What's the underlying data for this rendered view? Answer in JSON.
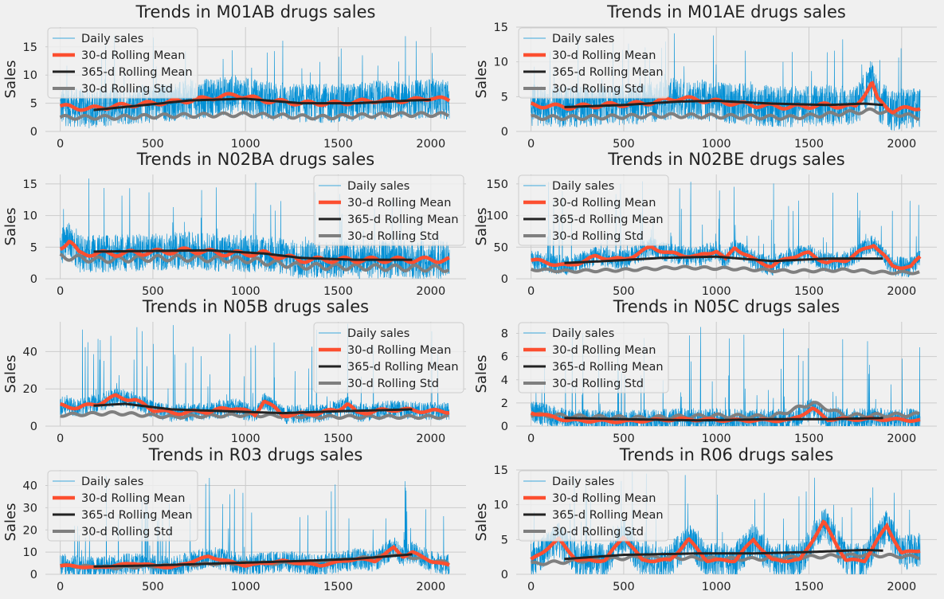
{
  "chart_data": [
    {
      "type": "line",
      "title": "Trends in M01AB drugs sales",
      "ylabel": "Sales",
      "xlim": [
        -80,
        2190
      ],
      "ylim": [
        0,
        18.5
      ],
      "xticks": [
        0,
        500,
        1000,
        1500,
        2000
      ],
      "yticks": [
        0,
        5,
        10,
        15
      ],
      "grid": true,
      "legend_position": "top-left",
      "series_stats": {
        "daily_mean": 5.0,
        "daily_spread": 3.5,
        "daily_peak": 17.5,
        "rolling_mean": [
          [
            0,
            4.5
          ],
          [
            150,
            4.0
          ],
          [
            300,
            4.5
          ],
          [
            500,
            5.0
          ],
          [
            700,
            5.5
          ],
          [
            950,
            6.5
          ],
          [
            1100,
            5.5
          ],
          [
            1300,
            5.0
          ],
          [
            1500,
            5.0
          ],
          [
            1700,
            5.5
          ],
          [
            1900,
            5.5
          ],
          [
            2000,
            6.0
          ],
          [
            2100,
            5.5
          ]
        ],
        "trend": [
          [
            180,
            3.8
          ],
          [
            400,
            4.5
          ],
          [
            700,
            5.5
          ],
          [
            1000,
            5.8
          ],
          [
            1300,
            5.0
          ],
          [
            1600,
            5.0
          ],
          [
            1900,
            5.5
          ],
          [
            2000,
            5.6
          ]
        ],
        "rolling_std": [
          [
            0,
            2.5
          ],
          [
            300,
            2.5
          ],
          [
            600,
            2.8
          ],
          [
            1000,
            3.0
          ],
          [
            1400,
            2.5
          ],
          [
            1800,
            3.0
          ],
          [
            2100,
            3.0
          ]
        ]
      }
    },
    {
      "type": "line",
      "title": "Trends in M01AE drugs sales",
      "ylabel": "Sales",
      "xlim": [
        -80,
        2190
      ],
      "ylim": [
        0,
        15
      ],
      "xticks": [
        0,
        500,
        1000,
        1500,
        2000
      ],
      "yticks": [
        0,
        5,
        10,
        15
      ],
      "grid": true,
      "legend_position": "top-left",
      "series_stats": {
        "daily_mean": 3.8,
        "daily_spread": 3.0,
        "daily_peak": 14.5,
        "rolling_mean": [
          [
            0,
            3.8
          ],
          [
            200,
            3.5
          ],
          [
            400,
            3.8
          ],
          [
            600,
            4.0
          ],
          [
            800,
            4.8
          ],
          [
            1000,
            4.3
          ],
          [
            1200,
            3.8
          ],
          [
            1400,
            3.5
          ],
          [
            1600,
            3.8
          ],
          [
            1750,
            3.5
          ],
          [
            1840,
            7.0
          ],
          [
            1870,
            4.5
          ],
          [
            1950,
            3.0
          ],
          [
            2100,
            3.5
          ]
        ],
        "trend": [
          [
            180,
            3.5
          ],
          [
            500,
            3.8
          ],
          [
            800,
            4.3
          ],
          [
            1000,
            4.4
          ],
          [
            1300,
            4.0
          ],
          [
            1600,
            3.8
          ],
          [
            1800,
            4.0
          ],
          [
            1900,
            3.8
          ]
        ],
        "rolling_std": [
          [
            0,
            2.0
          ],
          [
            300,
            2.0
          ],
          [
            700,
            2.3
          ],
          [
            1000,
            2.2
          ],
          [
            1400,
            2.0
          ],
          [
            1850,
            3.0
          ],
          [
            2100,
            2.0
          ]
        ]
      }
    },
    {
      "type": "line",
      "title": "Trends in N02BA drugs sales",
      "ylabel": "Sales",
      "xlim": [
        -80,
        2190
      ],
      "ylim": [
        0,
        16.5
      ],
      "xticks": [
        0,
        500,
        1000,
        1500,
        2000
      ],
      "yticks": [
        0,
        5,
        10,
        15
      ],
      "grid": true,
      "legend_position": "top-right",
      "series_stats": {
        "daily_mean": 3.8,
        "daily_spread": 3.0,
        "daily_peak": 16.0,
        "rolling_mean": [
          [
            0,
            5.0
          ],
          [
            50,
            6.0
          ],
          [
            100,
            4.0
          ],
          [
            300,
            4.0
          ],
          [
            500,
            4.2
          ],
          [
            700,
            4.5
          ],
          [
            900,
            4.0
          ],
          [
            1100,
            4.0
          ],
          [
            1300,
            3.0
          ],
          [
            1500,
            3.0
          ],
          [
            1700,
            3.0
          ],
          [
            1900,
            3.0
          ],
          [
            2100,
            3.0
          ]
        ],
        "trend": [
          [
            180,
            4.3
          ],
          [
            500,
            4.4
          ],
          [
            800,
            4.5
          ],
          [
            1100,
            4.0
          ],
          [
            1300,
            3.3
          ],
          [
            1600,
            3.0
          ],
          [
            1900,
            3.0
          ]
        ],
        "rolling_std": [
          [
            0,
            3.5
          ],
          [
            200,
            3.0
          ],
          [
            600,
            3.3
          ],
          [
            1000,
            3.0
          ],
          [
            1300,
            2.0
          ],
          [
            1700,
            1.8
          ],
          [
            2100,
            1.6
          ]
        ]
      }
    },
    {
      "type": "line",
      "title": "Trends in N02BE drugs sales",
      "ylabel": "Sales",
      "xlim": [
        -80,
        2190
      ],
      "ylim": [
        0,
        165
      ],
      "xticks": [
        0,
        500,
        1000,
        1500,
        2000
      ],
      "yticks": [
        0,
        50,
        100,
        150
      ],
      "grid": true,
      "legend_position": "top-left",
      "series_stats": {
        "daily_mean": 32,
        "daily_spread": 16,
        "daily_peak": 160,
        "rolling_mean": [
          [
            0,
            30
          ],
          [
            100,
            25
          ],
          [
            200,
            20
          ],
          [
            350,
            35
          ],
          [
            500,
            30
          ],
          [
            650,
            50
          ],
          [
            750,
            40
          ],
          [
            900,
            35
          ],
          [
            1000,
            45
          ],
          [
            1050,
            30
          ],
          [
            1100,
            50
          ],
          [
            1200,
            30
          ],
          [
            1300,
            20
          ],
          [
            1400,
            35
          ],
          [
            1500,
            40
          ],
          [
            1600,
            25
          ],
          [
            1700,
            30
          ],
          [
            1850,
            55
          ],
          [
            1950,
            20
          ],
          [
            2050,
            18
          ],
          [
            2100,
            35
          ]
        ],
        "trend": [
          [
            180,
            25
          ],
          [
            400,
            28
          ],
          [
            700,
            33
          ],
          [
            1000,
            35
          ],
          [
            1300,
            28
          ],
          [
            1600,
            32
          ],
          [
            1900,
            32
          ]
        ],
        "rolling_std": [
          [
            0,
            15
          ],
          [
            200,
            12
          ],
          [
            500,
            14
          ],
          [
            800,
            18
          ],
          [
            1100,
            16
          ],
          [
            1400,
            12
          ],
          [
            1700,
            14
          ],
          [
            1900,
            10
          ],
          [
            2100,
            10
          ]
        ]
      }
    },
    {
      "type": "line",
      "title": "Trends in N05B drugs sales",
      "ylabel": "Sales",
      "xlim": [
        -80,
        2190
      ],
      "ylim": [
        0,
        56
      ],
      "xticks": [
        0,
        500,
        1000,
        1500,
        2000
      ],
      "yticks": [
        0,
        20,
        40
      ],
      "grid": true,
      "legend_position": "top-right",
      "series_stats": {
        "daily_mean": 9,
        "daily_spread": 5,
        "daily_peak": 55,
        "rolling_mean": [
          [
            0,
            11
          ],
          [
            100,
            10
          ],
          [
            200,
            12
          ],
          [
            300,
            16
          ],
          [
            400,
            14
          ],
          [
            500,
            9
          ],
          [
            600,
            7
          ],
          [
            800,
            8
          ],
          [
            950,
            10
          ],
          [
            1050,
            6
          ],
          [
            1100,
            14
          ],
          [
            1200,
            6
          ],
          [
            1400,
            7
          ],
          [
            1500,
            9
          ],
          [
            1550,
            12
          ],
          [
            1600,
            7
          ],
          [
            1800,
            9
          ],
          [
            2000,
            8
          ],
          [
            2100,
            8
          ]
        ],
        "trend": [
          [
            180,
            11
          ],
          [
            350,
            12
          ],
          [
            600,
            9
          ],
          [
            900,
            8
          ],
          [
            1200,
            7
          ],
          [
            1500,
            8
          ],
          [
            1900,
            9
          ]
        ],
        "rolling_std": [
          [
            0,
            6
          ],
          [
            300,
            7
          ],
          [
            600,
            5
          ],
          [
            1000,
            6
          ],
          [
            1400,
            5
          ],
          [
            1800,
            5
          ],
          [
            2100,
            5
          ]
        ]
      }
    },
    {
      "type": "line",
      "title": "Trends in N05C drugs sales",
      "ylabel": "Sales",
      "xlim": [
        -80,
        2190
      ],
      "ylim": [
        0,
        9
      ],
      "xticks": [
        0,
        500,
        1000,
        1500,
        2000
      ],
      "yticks": [
        0,
        2,
        4,
        6,
        8
      ],
      "grid": true,
      "legend_position": "top-left",
      "series_stats": {
        "daily_mean": 0.5,
        "daily_spread": 1.0,
        "daily_peak": 9.0,
        "rolling_mean": [
          [
            0,
            1.2
          ],
          [
            200,
            0.5
          ],
          [
            500,
            0.4
          ],
          [
            800,
            0.6
          ],
          [
            1100,
            0.5
          ],
          [
            1400,
            0.5
          ],
          [
            1520,
            1.5
          ],
          [
            1600,
            0.6
          ],
          [
            1900,
            0.6
          ],
          [
            2100,
            0.5
          ]
        ],
        "trend": [
          [
            180,
            0.7
          ],
          [
            500,
            0.6
          ],
          [
            900,
            0.5
          ],
          [
            1300,
            0.6
          ],
          [
            1600,
            0.6
          ],
          [
            1900,
            0.7
          ]
        ],
        "rolling_std": [
          [
            0,
            1.0
          ],
          [
            300,
            0.8
          ],
          [
            600,
            0.7
          ],
          [
            1000,
            0.9
          ],
          [
            1300,
            0.8
          ],
          [
            1520,
            2.0
          ],
          [
            1700,
            0.9
          ],
          [
            2100,
            1.0
          ]
        ]
      }
    },
    {
      "type": "line",
      "title": "Trends in R03 drugs sales",
      "ylabel": "Sales",
      "xlim": [
        -80,
        2190
      ],
      "ylim": [
        0,
        47
      ],
      "xticks": [
        0,
        500,
        1000,
        1500,
        2000
      ],
      "yticks": [
        0,
        10,
        20,
        30,
        40
      ],
      "grid": true,
      "legend_position": "top-left",
      "series_stats": {
        "daily_mean": 5,
        "daily_spread": 5,
        "daily_peak": 45,
        "rolling_mean": [
          [
            0,
            4
          ],
          [
            200,
            3
          ],
          [
            400,
            5
          ],
          [
            600,
            3
          ],
          [
            800,
            8
          ],
          [
            1000,
            4
          ],
          [
            1200,
            6
          ],
          [
            1400,
            4
          ],
          [
            1600,
            7
          ],
          [
            1700,
            6
          ],
          [
            1800,
            12
          ],
          [
            1850,
            8
          ],
          [
            1900,
            10
          ],
          [
            2000,
            6
          ],
          [
            2100,
            4
          ]
        ],
        "trend": [
          [
            180,
            3.5
          ],
          [
            500,
            4
          ],
          [
            900,
            5
          ],
          [
            1300,
            6
          ],
          [
            1600,
            7
          ],
          [
            1900,
            9
          ]
        ],
        "rolling_std": [
          [
            0,
            4
          ],
          [
            300,
            3
          ],
          [
            600,
            4
          ],
          [
            900,
            5
          ],
          [
            1200,
            5
          ],
          [
            1500,
            6
          ],
          [
            1800,
            9
          ],
          [
            2100,
            5
          ]
        ]
      }
    },
    {
      "type": "line",
      "title": "Trends in R06 drugs sales",
      "ylabel": "Sales",
      "xlim": [
        -80,
        2190
      ],
      "ylim": [
        0,
        15
      ],
      "xticks": [
        0,
        500,
        1000,
        1500,
        2000
      ],
      "yticks": [
        0,
        5,
        10,
        15
      ],
      "grid": true,
      "legend_position": "top-left",
      "series_stats": {
        "daily_mean": 3,
        "daily_spread": 2.5,
        "daily_peak": 15,
        "rolling_mean": [
          [
            0,
            2
          ],
          [
            150,
            5
          ],
          [
            250,
            2
          ],
          [
            400,
            2
          ],
          [
            500,
            5.5
          ],
          [
            600,
            2
          ],
          [
            750,
            2
          ],
          [
            850,
            5
          ],
          [
            950,
            2
          ],
          [
            1100,
            2
          ],
          [
            1200,
            5
          ],
          [
            1300,
            2
          ],
          [
            1450,
            2
          ],
          [
            1580,
            7.5
          ],
          [
            1700,
            2
          ],
          [
            1800,
            2
          ],
          [
            1920,
            7
          ],
          [
            2000,
            3
          ],
          [
            2100,
            3.5
          ]
        ],
        "trend": [
          [
            180,
            2.2
          ],
          [
            500,
            2.8
          ],
          [
            900,
            3.0
          ],
          [
            1200,
            3.0
          ],
          [
            1500,
            3.2
          ],
          [
            1800,
            3.5
          ],
          [
            1900,
            3.4
          ]
        ],
        "rolling_std": [
          [
            0,
            1.5
          ],
          [
            300,
            2.0
          ],
          [
            600,
            2.5
          ],
          [
            900,
            2.3
          ],
          [
            1200,
            2.2
          ],
          [
            1500,
            2.5
          ],
          [
            1800,
            2.8
          ],
          [
            2100,
            2.5
          ]
        ]
      }
    }
  ],
  "legend": {
    "entries": [
      "Daily sales",
      "30-d Rolling Mean",
      "365-d Rolling Mean",
      "30-d Rolling Std"
    ],
    "colors": [
      "#008fd5",
      "#fc4f30",
      "#222222",
      "#7f7f7f"
    ]
  }
}
